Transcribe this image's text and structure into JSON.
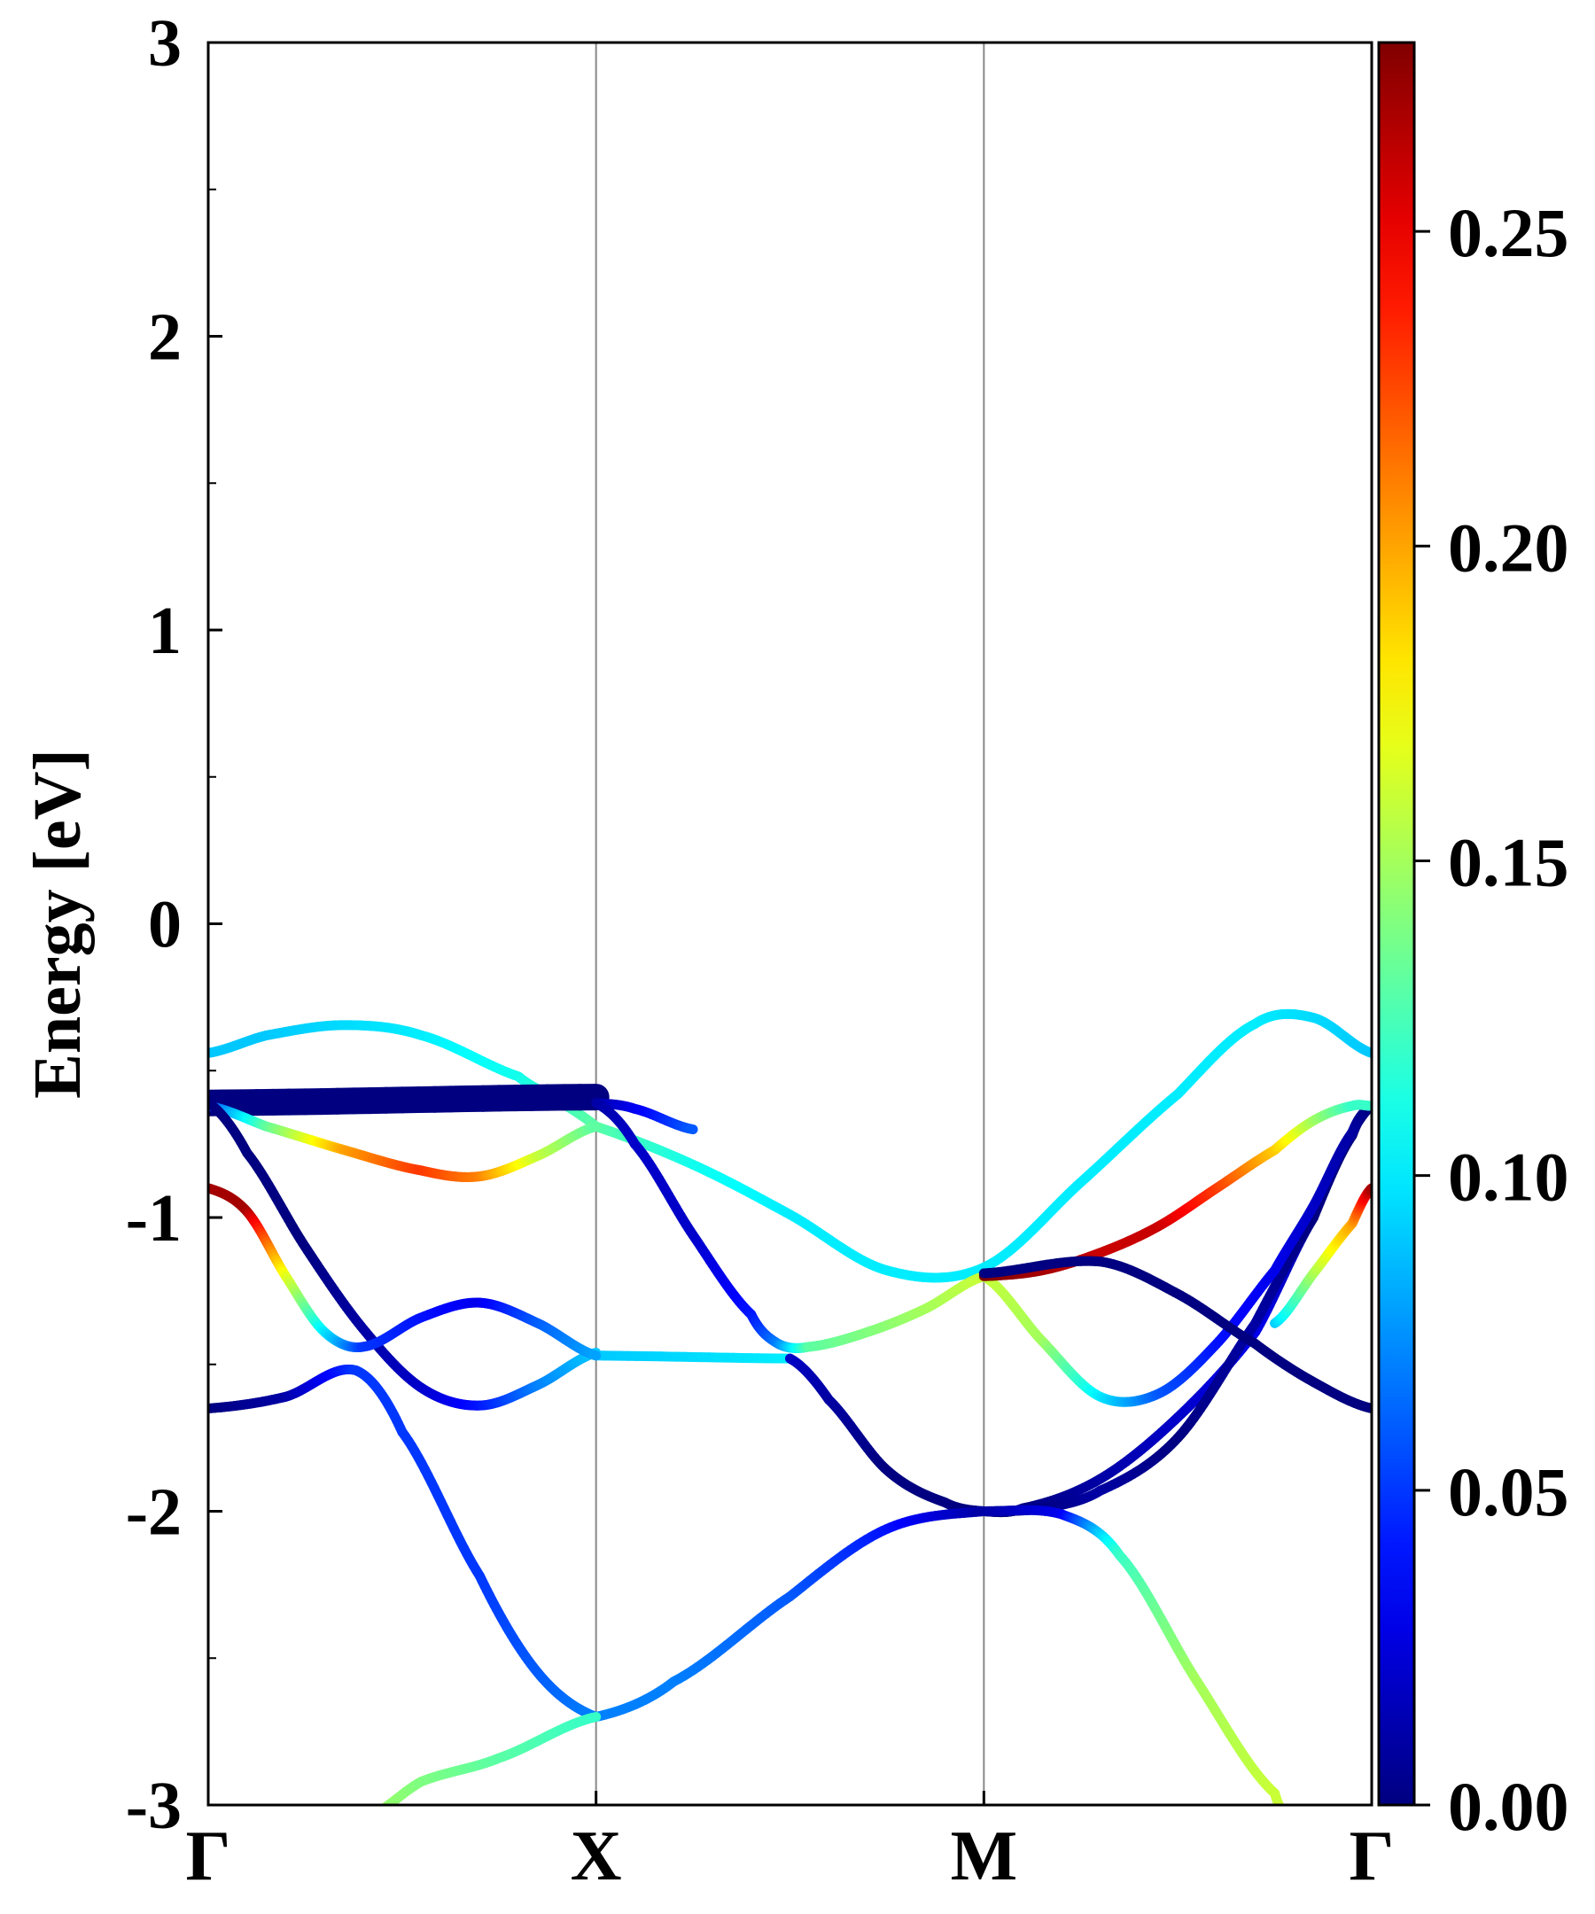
{
  "chart_data": {
    "type": "line",
    "title": "",
    "xlabel": "",
    "ylabel": "Energy [eV]",
    "ylim": [
      -3,
      3
    ],
    "yticks": [
      -3,
      -2,
      -1,
      0,
      1,
      2,
      3
    ],
    "yticks_minor": [
      -2.5,
      -1.5,
      -0.5,
      0.5,
      1.5,
      2.5
    ],
    "x_range": [
      0,
      3
    ],
    "kpoints": [
      {
        "label": "Γ",
        "x": 0
      },
      {
        "label": "X",
        "x": 1
      },
      {
        "label": "M",
        "x": 2
      },
      {
        "label": "Γ",
        "x": 3
      }
    ],
    "grid": "vertical lines at high-symmetry k-points",
    "colorbar": {
      "colormap": "jet",
      "range": [
        0,
        0.28
      ],
      "ticks": [
        "0.00",
        "0.05",
        "0.10",
        "0.15",
        "0.20",
        "0.25"
      ],
      "tick_values": [
        0,
        0.05,
        0.1,
        0.15,
        0.2,
        0.25
      ]
    },
    "series": [
      {
        "points": [
          [
            0,
            -0.44,
            0.09
          ],
          [
            0.15,
            -0.38,
            0.09
          ],
          [
            0.35,
            -0.345,
            0.095
          ],
          [
            0.55,
            -0.38,
            0.1
          ],
          [
            0.8,
            -0.52,
            0.11
          ],
          [
            0.9,
            -0.6,
            0.12
          ],
          [
            1,
            -0.69,
            0.13
          ],
          [
            1.25,
            -0.82,
            0.11
          ],
          [
            1.5,
            -0.99,
            0.1
          ],
          [
            1.75,
            -1.18,
            0.1
          ],
          [
            2,
            -1.17,
            0.1
          ],
          [
            2.25,
            -0.88,
            0.1
          ],
          [
            2.5,
            -0.58,
            0.1
          ],
          [
            2.7,
            -0.34,
            0.1
          ],
          [
            2.85,
            -0.32,
            0.095
          ],
          [
            3,
            -0.44,
            0.09
          ]
        ]
      },
      {
        "points": [
          [
            0,
            -0.61,
            0.0
          ],
          [
            1,
            -0.59,
            0.0
          ]
        ],
        "width": 30
      },
      {
        "points": [
          [
            0,
            -0.62,
            0.05
          ],
          [
            0.15,
            -0.69,
            0.13
          ],
          [
            0.35,
            -0.77,
            0.2
          ],
          [
            0.55,
            -0.84,
            0.23
          ],
          [
            0.7,
            -0.86,
            0.21
          ],
          [
            0.85,
            -0.79,
            0.16
          ],
          [
            1,
            -0.69,
            0.13
          ]
        ]
      },
      {
        "points": [
          [
            1,
            -0.61,
            0.01
          ],
          [
            1.1,
            -0.63,
            0.03
          ],
          [
            1.25,
            -0.7,
            0.06
          ]
        ]
      },
      {
        "points": [
          [
            0,
            -0.61,
            0.0
          ],
          [
            0.1,
            -0.78,
            0.0
          ],
          [
            0.25,
            -1.1,
            0.0
          ],
          [
            0.4,
            -1.38,
            0.01
          ],
          [
            0.55,
            -1.58,
            0.02
          ],
          [
            0.7,
            -1.64,
            0.04
          ],
          [
            0.85,
            -1.57,
            0.07
          ],
          [
            1,
            -1.46,
            0.09
          ]
        ]
      },
      {
        "points": [
          [
            1,
            -0.61,
            0.01
          ],
          [
            1.1,
            -0.75,
            0.02
          ],
          [
            1.25,
            -1.06,
            0.02
          ],
          [
            1.4,
            -1.33,
            0.04
          ],
          [
            1.47,
            -1.43,
            0.07
          ],
          [
            1.55,
            -1.44,
            0.13
          ],
          [
            1.7,
            -1.39,
            0.14
          ],
          [
            1.85,
            -1.31,
            0.15
          ],
          [
            2,
            -1.2,
            0.16
          ]
        ]
      },
      {
        "points": [
          [
            1,
            -1.47,
            0.09
          ],
          [
            1.5,
            -1.48,
            0.1
          ]
        ]
      },
      {
        "points": [
          [
            1.5,
            -1.48,
            0.02
          ],
          [
            1.6,
            -1.62,
            0.01
          ],
          [
            1.75,
            -1.86,
            0.0
          ],
          [
            1.9,
            -1.97,
            0.0
          ],
          [
            2,
            -2.0,
            0.0
          ],
          [
            2.1,
            -1.99,
            0.0
          ],
          [
            2.3,
            -1.89,
            0.01
          ],
          [
            2.5,
            -1.68,
            0.02
          ],
          [
            2.7,
            -1.39,
            0.03
          ],
          [
            2.85,
            -1.0,
            0.01
          ],
          [
            2.93,
            -0.76,
            0.0
          ],
          [
            3,
            -0.62,
            0.0
          ]
        ]
      },
      {
        "points": [
          [
            2,
            -2.0,
            0.0
          ],
          [
            2.15,
            -1.99,
            0.0
          ],
          [
            2.3,
            -1.93,
            0.01
          ],
          [
            2.5,
            -1.75,
            0.0
          ],
          [
            2.7,
            -1.36,
            0.01
          ],
          [
            2.85,
            -1.0,
            0.0
          ],
          [
            2.95,
            -0.72,
            0.0
          ],
          [
            3,
            -0.62,
            0.0
          ]
        ]
      },
      {
        "points": [
          [
            0,
            -0.9,
            0.27
          ],
          [
            0.1,
            -0.98,
            0.27
          ],
          [
            0.2,
            -1.2,
            0.17
          ],
          [
            0.3,
            -1.39,
            0.1
          ],
          [
            0.4,
            -1.44,
            0.05
          ],
          [
            0.55,
            -1.34,
            0.04
          ],
          [
            0.7,
            -1.29,
            0.03
          ],
          [
            0.85,
            -1.36,
            0.06
          ],
          [
            1,
            -1.47,
            0.08
          ]
        ]
      },
      {
        "points": [
          [
            0,
            -1.65,
            0.0
          ],
          [
            0.2,
            -1.61,
            0.01
          ],
          [
            0.38,
            -1.52,
            0.05
          ],
          [
            0.5,
            -1.73,
            0.05
          ],
          [
            0.7,
            -2.22,
            0.05
          ],
          [
            0.85,
            -2.55,
            0.06
          ],
          [
            1,
            -2.7,
            0.07
          ]
        ]
      },
      {
        "points": [
          [
            1,
            -2.7,
            0.07
          ],
          [
            1.2,
            -2.58,
            0.07
          ],
          [
            1.5,
            -2.29,
            0.06
          ],
          [
            1.75,
            -2.06,
            0.04
          ],
          [
            2,
            -2.0,
            0.01
          ]
        ]
      },
      {
        "points": [
          [
            2,
            -2.0,
            0.01
          ],
          [
            2.2,
            -2.01,
            0.03
          ],
          [
            2.35,
            -2.15,
            0.12
          ],
          [
            2.55,
            -2.58,
            0.15
          ],
          [
            2.75,
            -2.96,
            0.16
          ],
          [
            2.8,
            -3.05,
            0.16
          ]
        ]
      },
      {
        "points": [
          [
            2,
            -1.2,
            0.16
          ],
          [
            2.15,
            -1.42,
            0.15
          ],
          [
            2.3,
            -1.61,
            0.1
          ],
          [
            2.45,
            -1.6,
            0.06
          ],
          [
            2.6,
            -1.43,
            0.04
          ],
          [
            2.75,
            -1.18,
            0.03
          ],
          [
            2.85,
            -0.96,
            0.02
          ],
          [
            2.95,
            -0.71,
            0.01
          ],
          [
            3,
            -0.62,
            0.0
          ]
        ]
      },
      {
        "points": [
          [
            2,
            -1.2,
            0.28
          ],
          [
            2.15,
            -1.18,
            0.27
          ],
          [
            2.3,
            -1.12,
            0.26
          ],
          [
            2.45,
            -1.03,
            0.26
          ],
          [
            2.6,
            -0.9,
            0.23
          ],
          [
            2.75,
            -0.77,
            0.19
          ],
          [
            2.85,
            -0.67,
            0.15
          ],
          [
            2.95,
            -0.62,
            0.12
          ],
          [
            3,
            -0.62,
            0.12
          ]
        ]
      },
      {
        "points": [
          [
            2,
            -1.19,
            0.0
          ],
          [
            2.3,
            -1.15,
            0.0
          ],
          [
            2.5,
            -1.26,
            0.0
          ],
          [
            2.7,
            -1.43,
            0.0
          ],
          [
            2.85,
            -1.56,
            0.0
          ],
          [
            3,
            -1.65,
            0.0
          ]
        ]
      },
      {
        "points": [
          [
            2.75,
            -1.36,
            0.09
          ],
          [
            2.85,
            -1.19,
            0.15
          ],
          [
            2.95,
            -1.02,
            0.2
          ],
          [
            3,
            -0.9,
            0.27
          ]
        ]
      },
      {
        "points": [
          [
            0.4,
            -3.05,
            0.15
          ],
          [
            0.55,
            -2.92,
            0.14
          ],
          [
            0.75,
            -2.84,
            0.13
          ],
          [
            1,
            -2.7,
            0.12
          ]
        ]
      }
    ]
  }
}
